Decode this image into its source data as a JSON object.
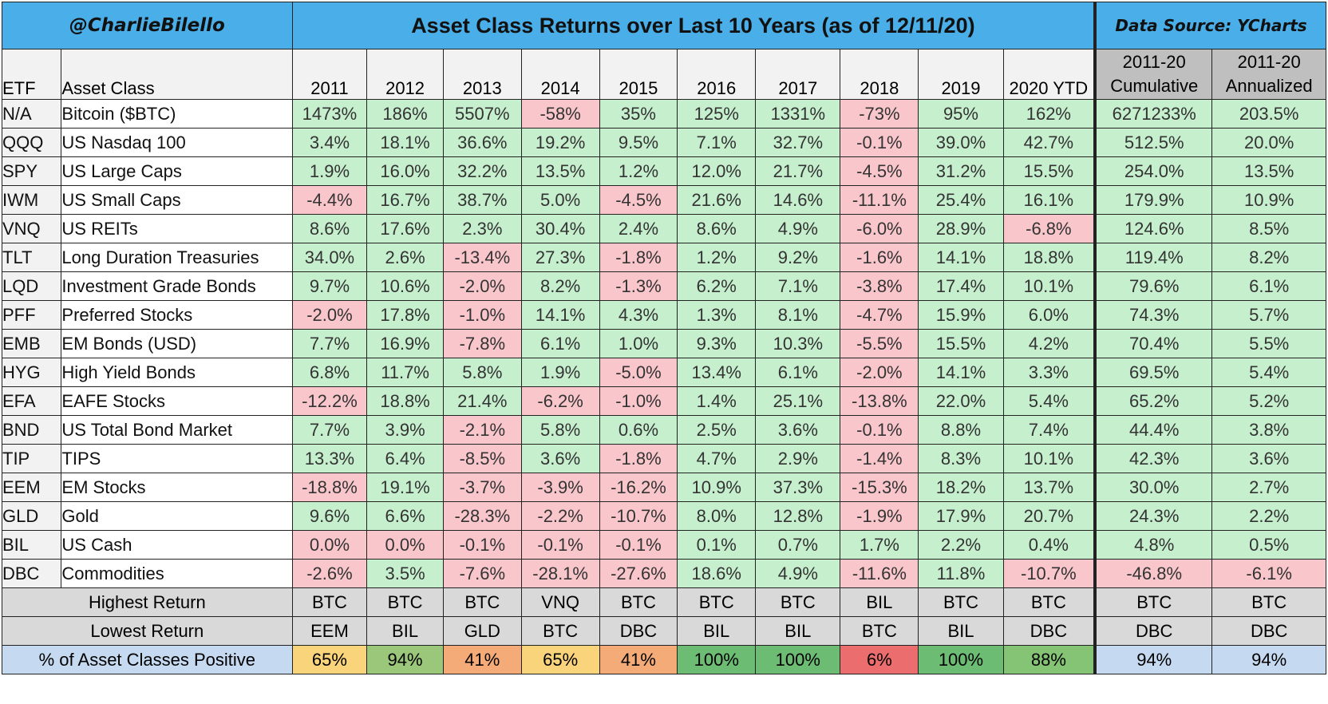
{
  "header": {
    "handle": "@CharlieBilello",
    "title": "Asset Class Returns over Last 10 Years (as of 12/11/20)",
    "source": "Data Source: YCharts"
  },
  "columns": {
    "etf": "ETF",
    "asset_class": "Asset Class",
    "years": [
      "2011",
      "2012",
      "2013",
      "2014",
      "2015",
      "2016",
      "2017",
      "2018",
      "2019",
      "2020 YTD"
    ],
    "cumulative": [
      "2011-20",
      "Cumulative"
    ],
    "annualized": [
      "2011-20",
      "Annualized"
    ]
  },
  "colors": {
    "title_bg": "#4aaee8",
    "positive_bg": "#c6efce",
    "negative_bg": "#f8c6cb",
    "summary_bg": "#d9d9d9",
    "pct_label_bg": "#c5d9f1"
  },
  "rows": [
    {
      "etf": "N/A",
      "asset": "Bitcoin ($BTC)",
      "values": [
        "1473%",
        "186%",
        "5507%",
        "-58%",
        "35%",
        "125%",
        "1331%",
        "-73%",
        "95%",
        "162%"
      ],
      "cumulative": "6271233%",
      "annualized": "203.5%"
    },
    {
      "etf": "QQQ",
      "asset": "US Nasdaq 100",
      "values": [
        "3.4%",
        "18.1%",
        "36.6%",
        "19.2%",
        "9.5%",
        "7.1%",
        "32.7%",
        "-0.1%",
        "39.0%",
        "42.7%"
      ],
      "cumulative": "512.5%",
      "annualized": "20.0%"
    },
    {
      "etf": "SPY",
      "asset": "US Large Caps",
      "values": [
        "1.9%",
        "16.0%",
        "32.2%",
        "13.5%",
        "1.2%",
        "12.0%",
        "21.7%",
        "-4.5%",
        "31.2%",
        "15.5%"
      ],
      "cumulative": "254.0%",
      "annualized": "13.5%"
    },
    {
      "etf": "IWM",
      "asset": "US Small Caps",
      "values": [
        "-4.4%",
        "16.7%",
        "38.7%",
        "5.0%",
        "-4.5%",
        "21.6%",
        "14.6%",
        "-11.1%",
        "25.4%",
        "16.1%"
      ],
      "cumulative": "179.9%",
      "annualized": "10.9%"
    },
    {
      "etf": "VNQ",
      "asset": "US REITs",
      "values": [
        "8.6%",
        "17.6%",
        "2.3%",
        "30.4%",
        "2.4%",
        "8.6%",
        "4.9%",
        "-6.0%",
        "28.9%",
        "-6.8%"
      ],
      "cumulative": "124.6%",
      "annualized": "8.5%"
    },
    {
      "etf": "TLT",
      "asset": "Long Duration Treasuries",
      "values": [
        "34.0%",
        "2.6%",
        "-13.4%",
        "27.3%",
        "-1.8%",
        "1.2%",
        "9.2%",
        "-1.6%",
        "14.1%",
        "18.8%"
      ],
      "cumulative": "119.4%",
      "annualized": "8.2%"
    },
    {
      "etf": "LQD",
      "asset": "Investment Grade Bonds",
      "values": [
        "9.7%",
        "10.6%",
        "-2.0%",
        "8.2%",
        "-1.3%",
        "6.2%",
        "7.1%",
        "-3.8%",
        "17.4%",
        "10.1%"
      ],
      "cumulative": "79.6%",
      "annualized": "6.1%"
    },
    {
      "etf": "PFF",
      "asset": "Preferred Stocks",
      "values": [
        "-2.0%",
        "17.8%",
        "-1.0%",
        "14.1%",
        "4.3%",
        "1.3%",
        "8.1%",
        "-4.7%",
        "15.9%",
        "6.0%"
      ],
      "cumulative": "74.3%",
      "annualized": "5.7%"
    },
    {
      "etf": "EMB",
      "asset": "EM Bonds (USD)",
      "values": [
        "7.7%",
        "16.9%",
        "-7.8%",
        "6.1%",
        "1.0%",
        "9.3%",
        "10.3%",
        "-5.5%",
        "15.5%",
        "4.2%"
      ],
      "cumulative": "70.4%",
      "annualized": "5.5%"
    },
    {
      "etf": "HYG",
      "asset": "High Yield Bonds",
      "values": [
        "6.8%",
        "11.7%",
        "5.8%",
        "1.9%",
        "-5.0%",
        "13.4%",
        "6.1%",
        "-2.0%",
        "14.1%",
        "3.3%"
      ],
      "cumulative": "69.5%",
      "annualized": "5.4%"
    },
    {
      "etf": "EFA",
      "asset": "EAFE Stocks",
      "values": [
        "-12.2%",
        "18.8%",
        "21.4%",
        "-6.2%",
        "-1.0%",
        "1.4%",
        "25.1%",
        "-13.8%",
        "22.0%",
        "5.4%"
      ],
      "cumulative": "65.2%",
      "annualized": "5.2%"
    },
    {
      "etf": "BND",
      "asset": "US Total Bond Market",
      "values": [
        "7.7%",
        "3.9%",
        "-2.1%",
        "5.8%",
        "0.6%",
        "2.5%",
        "3.6%",
        "-0.1%",
        "8.8%",
        "7.4%"
      ],
      "cumulative": "44.4%",
      "annualized": "3.8%"
    },
    {
      "etf": "TIP",
      "asset": "TIPS",
      "values": [
        "13.3%",
        "6.4%",
        "-8.5%",
        "3.6%",
        "-1.8%",
        "4.7%",
        "2.9%",
        "-1.4%",
        "8.3%",
        "10.1%"
      ],
      "cumulative": "42.3%",
      "annualized": "3.6%"
    },
    {
      "etf": "EEM",
      "asset": "EM Stocks",
      "values": [
        "-18.8%",
        "19.1%",
        "-3.7%",
        "-3.9%",
        "-16.2%",
        "10.9%",
        "37.3%",
        "-15.3%",
        "18.2%",
        "13.7%"
      ],
      "cumulative": "30.0%",
      "annualized": "2.7%"
    },
    {
      "etf": "GLD",
      "asset": "Gold",
      "values": [
        "9.6%",
        "6.6%",
        "-28.3%",
        "-2.2%",
        "-10.7%",
        "8.0%",
        "12.8%",
        "-1.9%",
        "17.9%",
        "20.7%"
      ],
      "cumulative": "24.3%",
      "annualized": "2.2%"
    },
    {
      "etf": "BIL",
      "asset": "US Cash",
      "values": [
        "0.0%",
        "0.0%",
        "-0.1%",
        "-0.1%",
        "-0.1%",
        "0.1%",
        "0.7%",
        "1.7%",
        "2.2%",
        "0.4%"
      ],
      "cumulative": "4.8%",
      "annualized": "0.5%"
    },
    {
      "etf": "DBC",
      "asset": "Commodities",
      "values": [
        "-2.6%",
        "3.5%",
        "-7.6%",
        "-28.1%",
        "-27.6%",
        "18.6%",
        "4.9%",
        "-11.6%",
        "11.8%",
        "-10.7%"
      ],
      "cumulative": "-46.8%",
      "annualized": "-6.1%"
    }
  ],
  "cell_tone": [
    [
      "pos",
      "pos",
      "pos",
      "neg",
      "pos",
      "pos",
      "pos",
      "neg",
      "pos",
      "pos",
      "pos",
      "pos"
    ],
    [
      "pos",
      "pos",
      "pos",
      "pos",
      "pos",
      "pos",
      "pos",
      "neg",
      "pos",
      "pos",
      "pos",
      "pos"
    ],
    [
      "pos",
      "pos",
      "pos",
      "pos",
      "pos",
      "pos",
      "pos",
      "neg",
      "pos",
      "pos",
      "pos",
      "pos"
    ],
    [
      "neg",
      "pos",
      "pos",
      "pos",
      "neg",
      "pos",
      "pos",
      "neg",
      "pos",
      "pos",
      "pos",
      "pos"
    ],
    [
      "pos",
      "pos",
      "pos",
      "pos",
      "pos",
      "pos",
      "pos",
      "neg",
      "pos",
      "neg",
      "pos",
      "pos"
    ],
    [
      "pos",
      "pos",
      "neg",
      "pos",
      "neg",
      "pos",
      "pos",
      "neg",
      "pos",
      "pos",
      "pos",
      "pos"
    ],
    [
      "pos",
      "pos",
      "neg",
      "pos",
      "neg",
      "pos",
      "pos",
      "neg",
      "pos",
      "pos",
      "pos",
      "pos"
    ],
    [
      "neg",
      "pos",
      "neg",
      "pos",
      "pos",
      "pos",
      "pos",
      "neg",
      "pos",
      "pos",
      "pos",
      "pos"
    ],
    [
      "pos",
      "pos",
      "neg",
      "pos",
      "pos",
      "pos",
      "pos",
      "neg",
      "pos",
      "pos",
      "pos",
      "pos"
    ],
    [
      "pos",
      "pos",
      "pos",
      "pos",
      "neg",
      "pos",
      "pos",
      "neg",
      "pos",
      "pos",
      "pos",
      "pos"
    ],
    [
      "neg",
      "pos",
      "pos",
      "neg",
      "neg",
      "pos",
      "pos",
      "neg",
      "pos",
      "pos",
      "pos",
      "pos"
    ],
    [
      "pos",
      "pos",
      "neg",
      "pos",
      "pos",
      "pos",
      "pos",
      "neg",
      "pos",
      "pos",
      "pos",
      "pos"
    ],
    [
      "pos",
      "pos",
      "neg",
      "pos",
      "neg",
      "pos",
      "pos",
      "neg",
      "pos",
      "pos",
      "pos",
      "pos"
    ],
    [
      "neg",
      "pos",
      "neg",
      "neg",
      "neg",
      "pos",
      "pos",
      "neg",
      "pos",
      "pos",
      "pos",
      "pos"
    ],
    [
      "pos",
      "pos",
      "neg",
      "neg",
      "neg",
      "pos",
      "pos",
      "neg",
      "pos",
      "pos",
      "pos",
      "pos"
    ],
    [
      "neg",
      "neg",
      "neg",
      "neg",
      "neg",
      "pos",
      "pos",
      "pos",
      "pos",
      "pos",
      "pos",
      "pos"
    ],
    [
      "neg",
      "pos",
      "neg",
      "neg",
      "neg",
      "pos",
      "pos",
      "neg",
      "pos",
      "neg",
      "neg",
      "neg"
    ]
  ],
  "summary": {
    "highest": {
      "label": "Highest Return",
      "values": [
        "BTC",
        "BTC",
        "BTC",
        "VNQ",
        "BTC",
        "BTC",
        "BTC",
        "BIL",
        "BTC",
        "BTC",
        "BTC",
        "BTC"
      ]
    },
    "lowest": {
      "label": "Lowest Return",
      "values": [
        "EEM",
        "BIL",
        "GLD",
        "BTC",
        "DBC",
        "BIL",
        "BIL",
        "BTC",
        "BIL",
        "DBC",
        "DBC",
        "DBC"
      ]
    },
    "positive": {
      "label": "% of Asset Classes Positive",
      "values": [
        "65%",
        "94%",
        "41%",
        "65%",
        "41%",
        "100%",
        "100%",
        "6%",
        "100%",
        "88%",
        "94%",
        "94%"
      ],
      "colors": [
        "#fad47a",
        "#9bc77a",
        "#f5ab78",
        "#fad47a",
        "#f5ab78",
        "#6cbd73",
        "#6cbd73",
        "#ec6d6d",
        "#6cbd73",
        "#84c474",
        "#c5d9f1",
        "#c5d9f1"
      ]
    }
  }
}
